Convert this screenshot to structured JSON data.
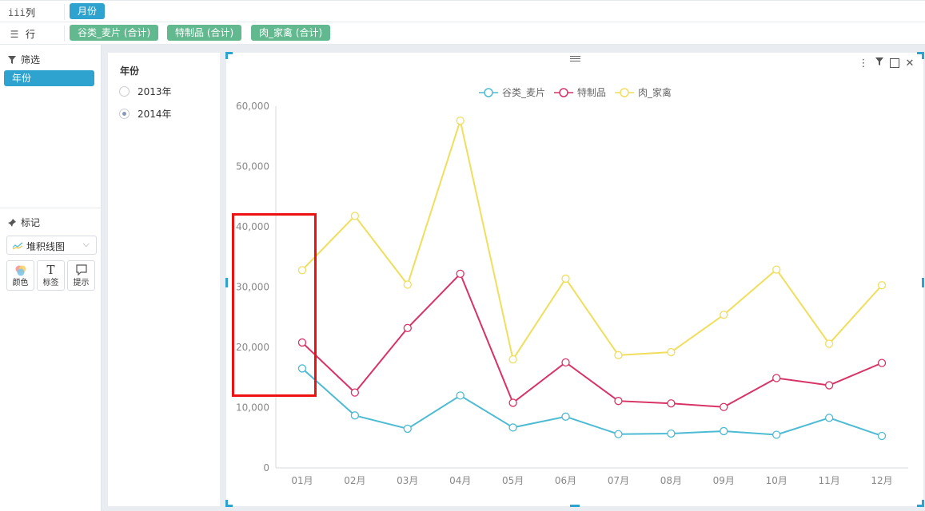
{
  "shelves": {
    "columns": {
      "label": "列",
      "icon": "iii",
      "pills": [
        "月份"
      ]
    },
    "rows": {
      "label": "行",
      "icon": "☰",
      "pills": [
        "谷类_麦片 (合计)",
        "特制品 (合计)",
        "肉_家禽 (合计)"
      ]
    }
  },
  "sidebar": {
    "filter_title": "筛选",
    "filter_pill": "年份",
    "marks_title": "标记",
    "mark_type": "堆积线图",
    "mark_buttons": [
      {
        "label": "颜色",
        "icon": "color-dots-icon"
      },
      {
        "label": "标签",
        "icon": "text-t-icon",
        "glyph": "T"
      },
      {
        "label": "提示",
        "icon": "speech-bubble-icon",
        "glyph": "▭"
      }
    ]
  },
  "filter_panel": {
    "title": "年份",
    "options": [
      {
        "label": "2013年",
        "selected": false
      },
      {
        "label": "2014年",
        "selected": true
      }
    ]
  },
  "colors": {
    "accent_blue": "#2fa3d0",
    "pill_green": "#63b98f",
    "highlight_red": "#e11111"
  },
  "chart_data": {
    "type": "line",
    "categories": [
      "01月",
      "02月",
      "03月",
      "04月",
      "05月",
      "06月",
      "07月",
      "08月",
      "09月",
      "10月",
      "11月",
      "12月"
    ],
    "ylim": [
      0,
      60000
    ],
    "yticks": [
      0,
      10000,
      20000,
      30000,
      40000,
      50000,
      60000
    ],
    "ytick_labels": [
      "0",
      "10,000",
      "20,000",
      "30,000",
      "40,000",
      "50,000",
      "60,000"
    ],
    "legend_position": "top-center",
    "grid": false,
    "series": [
      {
        "name": "谷类_麦片",
        "color": "#4dbbd3",
        "values": [
          16500,
          8700,
          6500,
          12000,
          6700,
          8500,
          5600,
          5700,
          6100,
          5500,
          8300,
          5300
        ]
      },
      {
        "name": "特制品",
        "color": "#d83366",
        "values": [
          20800,
          12500,
          23200,
          32200,
          10800,
          17500,
          11100,
          10700,
          10100,
          14900,
          13700,
          17400
        ]
      },
      {
        "name": "肉_家禽",
        "color": "#f0de5c",
        "values": [
          32800,
          41800,
          30400,
          57600,
          18000,
          31400,
          18700,
          19200,
          25400,
          32900,
          20600,
          30300
        ]
      }
    ]
  }
}
